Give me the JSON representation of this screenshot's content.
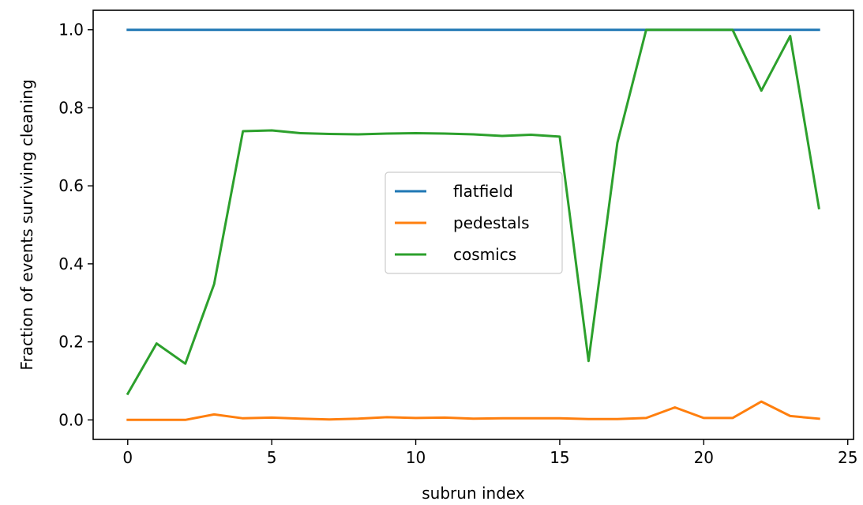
{
  "chart_data": {
    "type": "line",
    "xlabel": "subrun index",
    "ylabel": "Fraction of events surviving cleaning",
    "xlim": [
      -1.2,
      25.2
    ],
    "ylim": [
      -0.05,
      1.05
    ],
    "xticks": [
      0,
      5,
      10,
      15,
      20,
      25
    ],
    "xtick_labels": [
      "0",
      "5",
      "10",
      "15",
      "20",
      "25"
    ],
    "yticks": [
      0.0,
      0.2,
      0.4,
      0.6,
      0.8,
      1.0
    ],
    "ytick_labels": [
      "0.0",
      "0.2",
      "0.4",
      "0.6",
      "0.8",
      "1.0"
    ],
    "grid": false,
    "legend_position": "center",
    "x": [
      0,
      1,
      2,
      3,
      4,
      5,
      6,
      7,
      8,
      9,
      10,
      11,
      12,
      13,
      14,
      15,
      16,
      17,
      18,
      19,
      20,
      21,
      22,
      23,
      24
    ],
    "series": [
      {
        "name": "flatfield",
        "color": "#1f77b4",
        "values": [
          1.0,
          1.0,
          1.0,
          1.0,
          1.0,
          1.0,
          1.0,
          1.0,
          1.0,
          1.0,
          1.0,
          1.0,
          1.0,
          1.0,
          1.0,
          1.0,
          1.0,
          1.0,
          1.0,
          1.0,
          1.0,
          1.0,
          1.0,
          1.0,
          1.0
        ]
      },
      {
        "name": "pedestals",
        "color": "#ff7f0e",
        "values": [
          0.0,
          0.0,
          0.0,
          0.014,
          0.004,
          0.006,
          0.003,
          0.001,
          0.003,
          0.007,
          0.005,
          0.006,
          0.003,
          0.004,
          0.004,
          0.004,
          0.002,
          0.002,
          0.005,
          0.032,
          0.005,
          0.005,
          0.047,
          0.01,
          0.003
        ]
      },
      {
        "name": "cosmics",
        "color": "#2ca02c",
        "values": [
          0.067,
          0.196,
          0.144,
          0.348,
          0.74,
          0.742,
          0.735,
          0.733,
          0.732,
          0.734,
          0.735,
          0.734,
          0.732,
          0.728,
          0.731,
          0.726,
          0.151,
          0.71,
          1.0,
          1.0,
          1.0,
          1.0,
          0.844,
          0.984,
          0.543
        ]
      }
    ]
  }
}
